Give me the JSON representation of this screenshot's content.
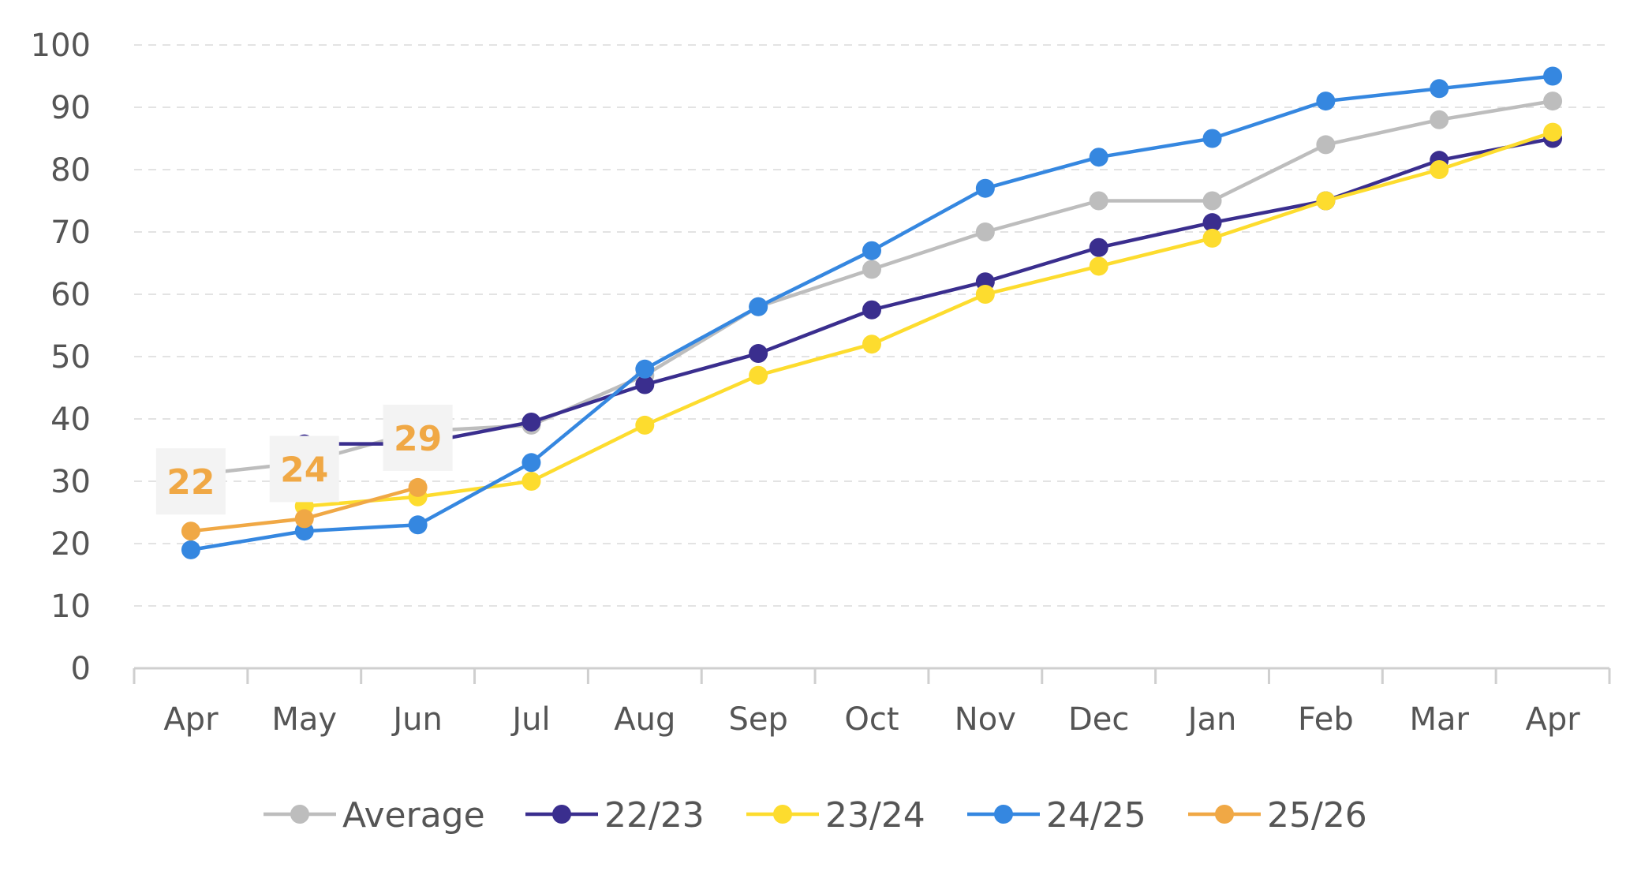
{
  "chart_data": {
    "type": "line",
    "title": "",
    "xlabel": "",
    "ylabel": "",
    "categories": [
      "Apr",
      "May",
      "Jun",
      "Jul",
      "Aug",
      "Sep",
      "Oct",
      "Nov",
      "Dec",
      "Jan",
      "Feb",
      "Mar",
      "Apr"
    ],
    "ylim": [
      0,
      100
    ],
    "yticks": [
      "0",
      "10",
      "20",
      "30",
      "40",
      "50",
      "60",
      "70",
      "80",
      "90",
      "100"
    ],
    "grid": "horizontal-dashed",
    "legend_position": "bottom",
    "series": [
      {
        "name": "Average",
        "color": "#BDBDBD",
        "values": [
          31,
          33,
          38,
          39,
          47,
          58,
          64,
          70,
          75,
          75,
          84,
          88,
          91
        ]
      },
      {
        "name": "22/23",
        "color": "#3A2E8E",
        "values": [
          null,
          36,
          36,
          39.5,
          45.5,
          50.5,
          57.5,
          62,
          67.5,
          71.5,
          75,
          81.5,
          85
        ]
      },
      {
        "name": "23/24",
        "color": "#FDDC2E",
        "values": [
          null,
          26,
          27.5,
          30,
          39,
          47,
          52,
          60,
          64.5,
          69,
          75,
          80,
          86
        ]
      },
      {
        "name": "24/25",
        "color": "#3587E0",
        "values": [
          19,
          22,
          23,
          33,
          48,
          58,
          67,
          77,
          82,
          85,
          91,
          93,
          95
        ]
      },
      {
        "name": "25/26",
        "color": "#F0A845",
        "values": [
          22,
          24,
          29,
          null,
          null,
          null,
          null,
          null,
          null,
          null,
          null,
          null,
          null
        ]
      }
    ],
    "data_labels": [
      {
        "series": "25/26",
        "index": 0,
        "text": "22"
      },
      {
        "series": "25/26",
        "index": 1,
        "text": "24"
      },
      {
        "series": "25/26",
        "index": 2,
        "text": "29"
      }
    ]
  }
}
